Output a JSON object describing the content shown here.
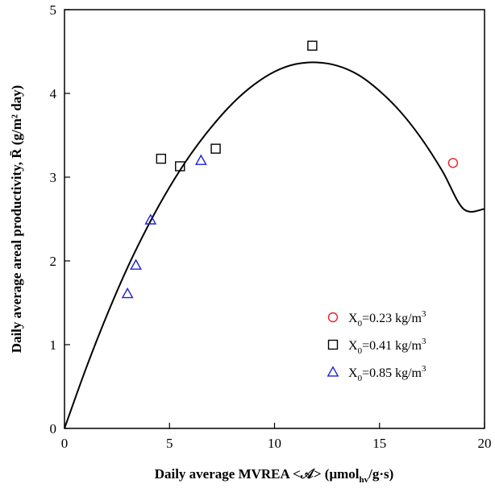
{
  "chart_data": {
    "type": "scatter",
    "xlabel": "Daily average MVREA <𝒜> (μmol",
    "xlabel_sub": "hv",
    "xlabel_tail": "/g·s)",
    "ylabel": "Daily average areal productivity, R̄ (g/m² day)",
    "xlim": [
      0,
      20
    ],
    "ylim": [
      0,
      5
    ],
    "x_ticks": [
      "0",
      "5",
      "10",
      "15",
      "20"
    ],
    "y_ticks": [
      "0",
      "1",
      "2",
      "3",
      "4",
      "5"
    ],
    "grid": false,
    "legend_position": "bottom-right",
    "series": [
      {
        "name": "X₀=0.23 kg/m³",
        "legend": {
          "pre": "X",
          "sub": "0",
          "mid": "=0.23 kg/m",
          "sup": "3"
        },
        "marker": "circle",
        "color": "#e8222a",
        "points": [
          [
            18.5,
            3.17
          ]
        ]
      },
      {
        "name": "X₀=0.41 kg/m³",
        "legend": {
          "pre": "X",
          "sub": "0",
          "mid": "=0.41 kg/m",
          "sup": "3"
        },
        "marker": "square",
        "color": "#000000",
        "points": [
          [
            4.6,
            3.22
          ],
          [
            5.5,
            3.13
          ],
          [
            7.2,
            3.34
          ],
          [
            11.8,
            4.57
          ]
        ]
      },
      {
        "name": "X₀=0.85 kg/m³",
        "legend": {
          "pre": "X",
          "sub": "0",
          "mid": "=0.85 kg/m",
          "sup": "3"
        },
        "marker": "triangle",
        "color": "#1f1fd6",
        "points": [
          [
            3.0,
            1.61
          ],
          [
            3.4,
            1.95
          ],
          [
            4.1,
            2.49
          ],
          [
            6.5,
            3.2
          ]
        ]
      }
    ],
    "curve": {
      "points": [
        [
          0,
          0
        ],
        [
          1,
          0.7
        ],
        [
          2,
          1.34
        ],
        [
          3,
          1.92
        ],
        [
          4,
          2.43
        ],
        [
          5,
          2.88
        ],
        [
          6,
          3.27
        ],
        [
          7,
          3.6
        ],
        [
          8,
          3.88
        ],
        [
          9,
          4.1
        ],
        [
          10,
          4.26
        ],
        [
          11,
          4.35
        ],
        [
          12,
          4.37
        ],
        [
          13,
          4.33
        ],
        [
          14,
          4.22
        ],
        [
          15,
          4.03
        ],
        [
          16,
          3.78
        ],
        [
          17,
          3.46
        ],
        [
          18,
          3.07
        ],
        [
          19,
          2.62
        ],
        [
          20,
          2.62
        ]
      ],
      "color": "#000000"
    }
  }
}
